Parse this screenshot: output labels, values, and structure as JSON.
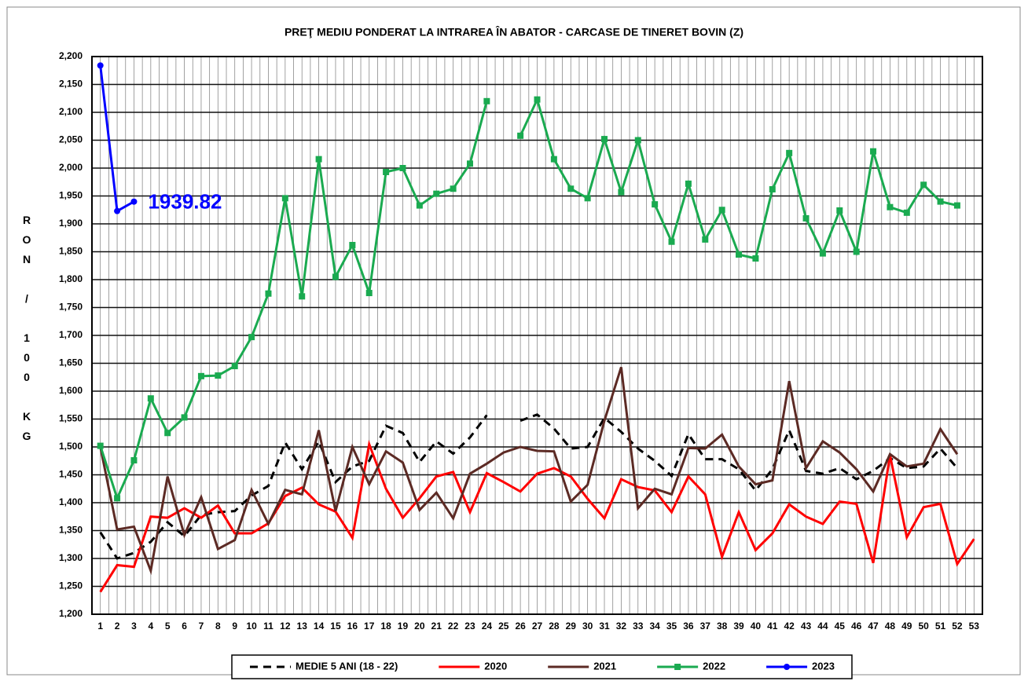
{
  "chart_data": {
    "type": "line",
    "title": "PREŢ MEDIU PONDERAT LA INTRAREA ÎN ABATOR  - CARCASE DE TINERET BOVIN (Z)",
    "y_label": "RON / 100 KG",
    "annotation": "1939.82",
    "categories": [
      "1",
      "2",
      "3",
      "4",
      "5",
      "6",
      "7",
      "8",
      "9",
      "10",
      "11",
      "12",
      "13",
      "14",
      "15",
      "16",
      "17",
      "18",
      "19",
      "20",
      "21",
      "22",
      "23",
      "24",
      "25",
      "26",
      "27",
      "28",
      "29",
      "30",
      "31",
      "32",
      "33",
      "34",
      "35",
      "36",
      "37",
      "38",
      "39",
      "40",
      "41",
      "42",
      "43",
      "44",
      "45",
      "46",
      "47",
      "48",
      "49",
      "50",
      "51",
      "52",
      "53"
    ],
    "ylim": [
      1200,
      2200
    ],
    "yticks": [
      {
        "value": 1200,
        "label": "1,200"
      },
      {
        "value": 1250,
        "label": "1,250"
      },
      {
        "value": 1300,
        "label": "1,300"
      },
      {
        "value": 1350,
        "label": "1,350"
      },
      {
        "value": 1400,
        "label": "1,400"
      },
      {
        "value": 1450,
        "label": "1,450"
      },
      {
        "value": 1500,
        "label": "1,500"
      },
      {
        "value": 1550,
        "label": "1,550"
      },
      {
        "value": 1600,
        "label": "1,600"
      },
      {
        "value": 1650,
        "label": "1,650"
      },
      {
        "value": 1700,
        "label": "1,700"
      },
      {
        "value": 1750,
        "label": "1,750"
      },
      {
        "value": 1800,
        "label": "1,800"
      },
      {
        "value": 1850,
        "label": "1,850"
      },
      {
        "value": 1900,
        "label": "1,900"
      },
      {
        "value": 1950,
        "label": "1,950"
      },
      {
        "value": 2000,
        "label": "2,000"
      },
      {
        "value": 2050,
        "label": "2,050"
      },
      {
        "value": 2100,
        "label": "2,100"
      },
      {
        "value": 2150,
        "label": "2,150"
      },
      {
        "value": 2200,
        "label": "2,200"
      }
    ],
    "grid": true,
    "legend": "bottom",
    "series": [
      {
        "name": "MEDIE 5 ANI (18 - 22)",
        "color": "#000000",
        "dash": true,
        "marker": null,
        "values": [
          1347,
          1300,
          1310,
          1330,
          1365,
          1340,
          1378,
          1383,
          1385,
          1413,
          1430,
          1508,
          1460,
          1510,
          1437,
          1465,
          1475,
          1538,
          1525,
          1473,
          1510,
          1488,
          1517,
          1557,
          null,
          1547,
          1558,
          1533,
          1497,
          1500,
          1552,
          1527,
          1497,
          1475,
          1448,
          1523,
          1478,
          1478,
          1460,
          1422,
          1460,
          1530,
          1457,
          1452,
          1462,
          1442,
          1457,
          1480,
          1462,
          1465,
          1497,
          1462,
          null
        ]
      },
      {
        "name": "2020",
        "color": "#ff0000",
        "dash": false,
        "marker": null,
        "values": [
          1240,
          1288,
          1285,
          1375,
          1373,
          1390,
          1373,
          1395,
          1345,
          1345,
          1363,
          1412,
          1427,
          1397,
          1384,
          1337,
          1505,
          1425,
          1373,
          1408,
          1447,
          1455,
          1383,
          1453,
          1437,
          1420,
          1452,
          1462,
          1447,
          1407,
          1372,
          1442,
          1428,
          1422,
          1383,
          1447,
          1415,
          1303,
          1383,
          1315,
          1345,
          1397,
          1375,
          1362,
          1402,
          1398,
          1292,
          1485,
          1338,
          1392,
          1398,
          1290,
          1335
        ]
      },
      {
        "name": "2021",
        "color": "#5c2a24",
        "dash": false,
        "marker": null,
        "values": [
          1500,
          1352,
          1357,
          1278,
          1447,
          1342,
          1410,
          1317,
          1333,
          1423,
          1362,
          1423,
          1415,
          1530,
          1385,
          1500,
          1433,
          1492,
          1472,
          1387,
          1418,
          1372,
          1452,
          1470,
          1490,
          1500,
          1493,
          1492,
          1402,
          1432,
          1547,
          1643,
          1390,
          1425,
          1415,
          1498,
          1497,
          1522,
          1465,
          1433,
          1440,
          1618,
          1462,
          1510,
          1490,
          1460,
          1420,
          1487,
          1465,
          1470,
          1532,
          1487,
          null
        ]
      },
      {
        "name": "2022",
        "color": "#1aaa50",
        "dash": false,
        "marker": "square",
        "values": [
          1502,
          1408,
          1476,
          1587,
          1525,
          1553,
          1627,
          1628,
          1645,
          1697,
          1775,
          1946,
          1770,
          2016,
          1805,
          1862,
          1776,
          1993,
          2000,
          1933,
          1954,
          1963,
          2008,
          2120,
          null,
          2058,
          2123,
          2016,
          1963,
          1946,
          2052,
          1957,
          2050,
          1935,
          1868,
          1972,
          1872,
          1925,
          1845,
          1838,
          1962,
          2027,
          1910,
          1847,
          1924,
          1850,
          2030,
          1930,
          1920,
          1970,
          1940,
          1933,
          null
        ]
      },
      {
        "name": "2023",
        "color": "#0000ff",
        "dash": false,
        "marker": "circle",
        "values": [
          2184,
          1923,
          1939.82,
          null,
          null,
          null,
          null,
          null,
          null,
          null,
          null,
          null,
          null,
          null,
          null,
          null,
          null,
          null,
          null,
          null,
          null,
          null,
          null,
          null,
          null,
          null,
          null,
          null,
          null,
          null,
          null,
          null,
          null,
          null,
          null,
          null,
          null,
          null,
          null,
          null,
          null,
          null,
          null,
          null,
          null,
          null,
          null,
          null,
          null,
          null,
          null,
          null,
          null
        ]
      }
    ]
  }
}
